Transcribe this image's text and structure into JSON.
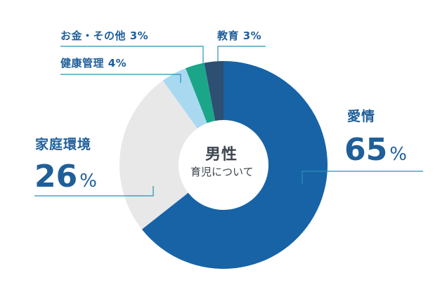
{
  "chart_data": {
    "type": "pie",
    "center": {
      "title": "男性",
      "subtitle": "育児について"
    },
    "slices": [
      {
        "label": "愛情",
        "value": 65,
        "value_text": "65",
        "unit": "%",
        "color": "#1763a6"
      },
      {
        "label": "家庭環境",
        "value": 26,
        "value_text": "26",
        "unit": "%",
        "color": "#e8e8e8"
      },
      {
        "label": "健康管理",
        "value": 4,
        "value_text": "4%",
        "color": "#a9d9f1"
      },
      {
        "label": "お金・その他",
        "value": 3,
        "value_text": "3%",
        "color": "#1ba68a"
      },
      {
        "label": "教育",
        "value": 3,
        "value_text": "3%",
        "color": "#2c4f72"
      }
    ],
    "leader_color": "#2b8fb3"
  }
}
